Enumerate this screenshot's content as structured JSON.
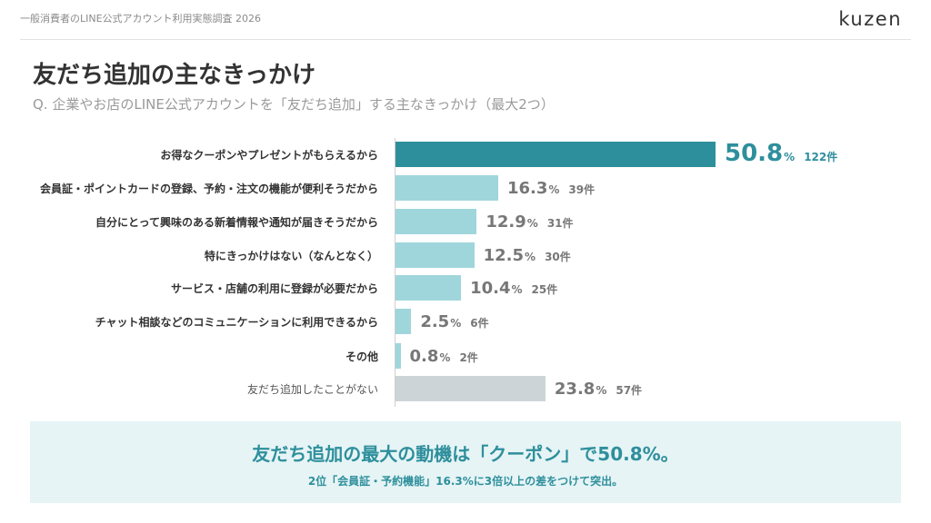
{
  "header": {
    "report_title": "一般消費者のLINE公式アカウント利用実態調査 2026",
    "logo": "kuzen"
  },
  "page": {
    "title": "友だち追加の主なきっかけ",
    "subtitle": "Q. 企業やお店のLINE公式アカウントを「友だち追加」する主なきっかけ（最大2つ）"
  },
  "colors": {
    "top_bar": "#2e8f9c",
    "bar": "#9fd6dc",
    "none_bar": "#cdd4d7",
    "accent_text": "#2e8f9c",
    "value_text": "#777777"
  },
  "chart_data": {
    "type": "bar",
    "orientation": "horizontal",
    "value_unit": "%",
    "count_unit": "件",
    "xlim": [
      0,
      60
    ],
    "grid": false,
    "legend": "none",
    "categories": [
      "お得なクーポンやプレゼントがもらえるから",
      "会員証・ポイントカードの登録、予約・注文の機能が便利そうだから",
      "自分にとって興味のある新着情報や通知が届きそうだから",
      "特にきっかけはない（なんとなく）",
      "サービス・店舗の利用に登録が必要だから",
      "チャット相談などのコミュニケーションに利用できるから",
      "その他",
      "友だち追加したことがない"
    ],
    "values": [
      50.8,
      16.3,
      12.9,
      12.5,
      10.4,
      2.5,
      0.8,
      23.8
    ],
    "value_labels": [
      "50.8",
      "16.3",
      "12.9",
      "12.5",
      "10.4",
      "2.5",
      "0.8",
      "23.8"
    ],
    "counts": [
      "122件",
      "39件",
      "31件",
      "30件",
      "25件",
      "6件",
      "2件",
      "57件"
    ],
    "highlight_index": 0,
    "muted_index": 7
  },
  "summary": {
    "main": "友だち追加の最大の動機は「クーポン」で50.8%。",
    "sub": "2位「会員証・予約機能」16.3%に3倍以上の差をつけて突出。"
  }
}
